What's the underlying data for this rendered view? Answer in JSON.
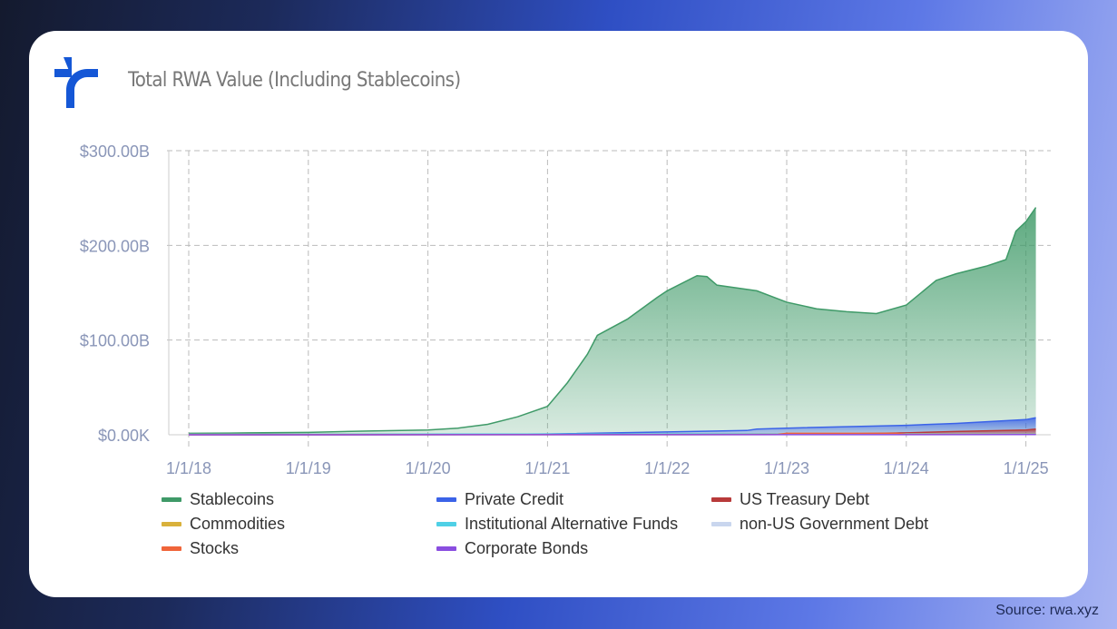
{
  "header": {
    "title": "Total RWA Value (Including Stablecoins)",
    "logo": "rwa-xyz-logo"
  },
  "source": "Source: rwa.xyz",
  "colors": {
    "brand": "#1557d6"
  },
  "chart_data": {
    "type": "area",
    "title": "Total RWA Value (Including Stablecoins)",
    "xlabel": "",
    "ylabel": "",
    "x_ticks": [
      "1/1/18",
      "1/1/19",
      "1/1/20",
      "1/1/21",
      "1/1/22",
      "1/1/23",
      "1/1/24",
      "1/1/25"
    ],
    "y_ticks": [
      "$0.00K",
      "$100.00B",
      "$200.00B",
      "$300.00B"
    ],
    "ylim": [
      0,
      300
    ],
    "xlim": [
      "2017-11",
      "2025-03"
    ],
    "grid": true,
    "legend_position": "bottom",
    "series": [
      {
        "name": "Stablecoins",
        "color": "#3f9a68",
        "points": [
          [
            "2018-01",
            1.5
          ],
          [
            "2018-07",
            2
          ],
          [
            "2019-01",
            2.5
          ],
          [
            "2019-07",
            4
          ],
          [
            "2020-01",
            5
          ],
          [
            "2020-04",
            7
          ],
          [
            "2020-07",
            11
          ],
          [
            "2020-10",
            19
          ],
          [
            "2021-01",
            30
          ],
          [
            "2021-03",
            55
          ],
          [
            "2021-05",
            85
          ],
          [
            "2021-06",
            105
          ],
          [
            "2021-09",
            122
          ],
          [
            "2021-12",
            145
          ],
          [
            "2022-01",
            152
          ],
          [
            "2022-04",
            168
          ],
          [
            "2022-05",
            167
          ],
          [
            "2022-06",
            158
          ],
          [
            "2022-10",
            152
          ],
          [
            "2023-01",
            140
          ],
          [
            "2023-04",
            133
          ],
          [
            "2023-07",
            130
          ],
          [
            "2023-10",
            128
          ],
          [
            "2024-01",
            137
          ],
          [
            "2024-04",
            163
          ],
          [
            "2024-06",
            170
          ],
          [
            "2024-09",
            178
          ],
          [
            "2024-11",
            185
          ],
          [
            "2024-12",
            215
          ],
          [
            "2025-01",
            225
          ],
          [
            "2025-02",
            240
          ]
        ]
      },
      {
        "name": "Private Credit",
        "color": "#3b63e8",
        "points": [
          [
            "2018-01",
            0
          ],
          [
            "2020-01",
            0.2
          ],
          [
            "2021-01",
            0.8
          ],
          [
            "2022-01",
            3
          ],
          [
            "2022-06",
            4
          ],
          [
            "2022-09",
            4.5
          ],
          [
            "2022-10",
            6
          ],
          [
            "2023-01",
            7
          ],
          [
            "2024-01",
            10
          ],
          [
            "2024-06",
            12
          ],
          [
            "2025-01",
            16
          ],
          [
            "2025-02",
            18
          ]
        ]
      },
      {
        "name": "US Treasury Debt",
        "color": "#b83a3a",
        "points": [
          [
            "2018-01",
            0
          ],
          [
            "2023-01",
            0.2
          ],
          [
            "2023-06",
            0.8
          ],
          [
            "2024-01",
            2
          ],
          [
            "2024-06",
            3.5
          ],
          [
            "2025-01",
            5
          ],
          [
            "2025-02",
            6
          ]
        ]
      },
      {
        "name": "Commodities",
        "color": "#d9b13b",
        "points": [
          [
            "2018-01",
            0.5
          ],
          [
            "2025-02",
            1
          ]
        ]
      },
      {
        "name": "Institutional Alternative Funds",
        "color": "#4fd0e6",
        "points": [
          [
            "2018-01",
            0.5
          ],
          [
            "2025-02",
            1
          ]
        ]
      },
      {
        "name": "non-US Government Debt",
        "color": "#c9d6ee",
        "points": [
          [
            "2018-01",
            0
          ],
          [
            "2025-02",
            0.5
          ]
        ]
      },
      {
        "name": "Stocks",
        "color": "#f0653a",
        "points": [
          [
            "2018-01",
            0
          ],
          [
            "2022-12",
            0.3
          ],
          [
            "2023-01",
            1.5
          ],
          [
            "2023-12",
            1.5
          ],
          [
            "2024-01",
            0.5
          ],
          [
            "2025-02",
            0.5
          ]
        ]
      },
      {
        "name": "Corporate Bonds",
        "color": "#8a4ee0",
        "points": [
          [
            "2018-01",
            0
          ],
          [
            "2025-02",
            0.2
          ]
        ]
      }
    ]
  }
}
